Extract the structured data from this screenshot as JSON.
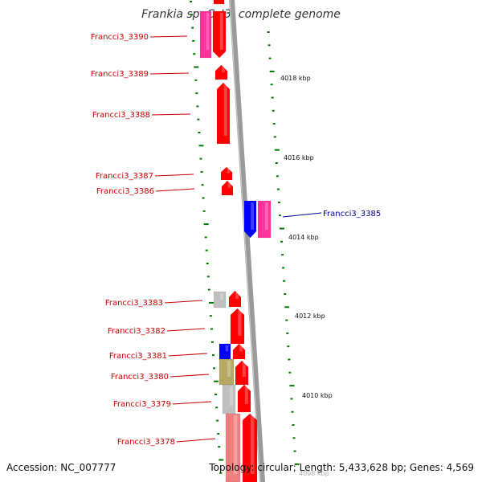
{
  "title": "Frankia sp. CcI3, complete genome",
  "accession_text": "Accession: NC_007777",
  "summary_text": "Topology: circular; Length: 5,433,628 bp; Genes: 4,569",
  "colors": {
    "forward_gene": "#ff0000",
    "reverse_gene": "#ff0000",
    "pink_gene": "#ff3399",
    "blue_gene": "#0000ff",
    "gray_gene": "#c0c0c0",
    "olive_gene": "#b5a860",
    "salmon_gene": "#f08080",
    "label_left": "#cc0000",
    "label_right": "#000099",
    "tick": "#007700",
    "backbone": "#808080"
  },
  "scale_labels": [
    "4018 kbp",
    "4016 kbp",
    "4014 kbp",
    "4012 kbp",
    "4010 kbp",
    "4008 kbp"
  ],
  "gene_labels": [
    "Francci3_3390",
    "Francci3_3389",
    "Francci3_3388",
    "Francci3_3387",
    "Francci3_3386",
    "Francci3_3385",
    "Francci3_3383",
    "Francci3_3382",
    "Francci3_3381",
    "Francci3_3380",
    "Francci3_3379",
    "Francci3_3378"
  ]
}
